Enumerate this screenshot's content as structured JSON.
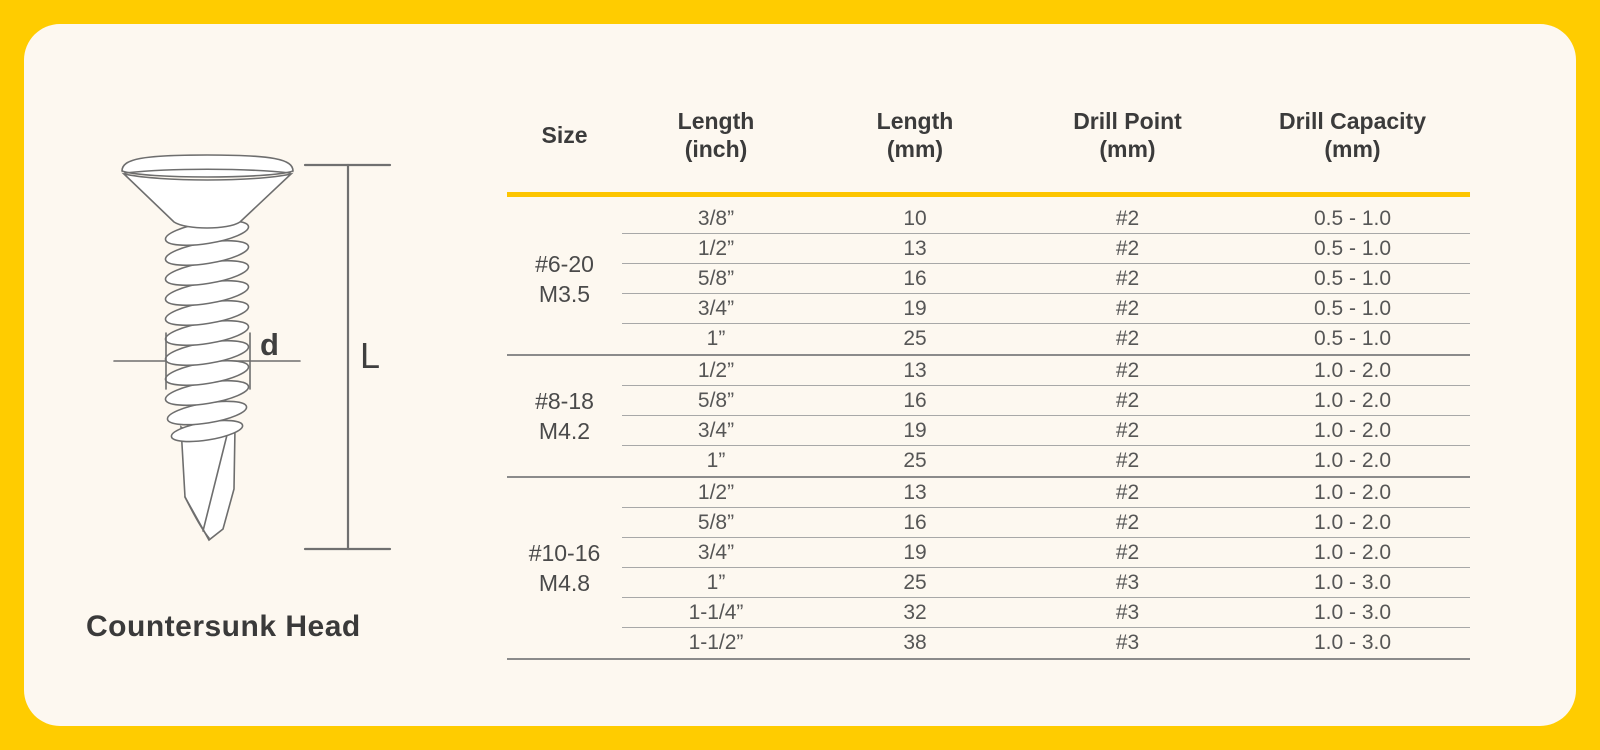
{
  "colors": {
    "frame_yellow": "#FFCC00",
    "card_background": "#FDF8F0",
    "header_rule_yellow": "#FDC500",
    "line_gray": "#a8a8a8",
    "text_dark": "#3b3b3b"
  },
  "diagram": {
    "caption": "Countersunk Head",
    "diameter_label": "d",
    "length_label": "L"
  },
  "table": {
    "columns": [
      {
        "label": "Size",
        "unit": ""
      },
      {
        "label": "Length",
        "unit": "(inch)"
      },
      {
        "label": "Length",
        "unit": "(mm)"
      },
      {
        "label": "Drill Point",
        "unit": "(mm)"
      },
      {
        "label": "Drill Capacity",
        "unit": "(mm)"
      }
    ],
    "groups": [
      {
        "size": [
          "#6-20",
          "M3.5"
        ],
        "rows": [
          [
            "3/8”",
            "10",
            "#2",
            "0.5 - 1.0"
          ],
          [
            "1/2”",
            "13",
            "#2",
            "0.5 - 1.0"
          ],
          [
            "5/8”",
            "16",
            "#2",
            "0.5 - 1.0"
          ],
          [
            "3/4”",
            "19",
            "#2",
            "0.5 - 1.0"
          ],
          [
            "1”",
            "25",
            "#2",
            "0.5 - 1.0"
          ]
        ]
      },
      {
        "size": [
          "#8-18",
          "M4.2"
        ],
        "rows": [
          [
            "1/2”",
            "13",
            "#2",
            "1.0 - 2.0"
          ],
          [
            "5/8”",
            "16",
            "#2",
            "1.0 - 2.0"
          ],
          [
            "3/4”",
            "19",
            "#2",
            "1.0 - 2.0"
          ],
          [
            "1”",
            "25",
            "#2",
            "1.0 - 2.0"
          ]
        ]
      },
      {
        "size": [
          "#10-16",
          "M4.8"
        ],
        "rows": [
          [
            "1/2”",
            "13",
            "#2",
            "1.0 - 2.0"
          ],
          [
            "5/8”",
            "16",
            "#2",
            "1.0 - 2.0"
          ],
          [
            "3/4”",
            "19",
            "#2",
            "1.0 - 2.0"
          ],
          [
            "1”",
            "25",
            "#3",
            "1.0 - 3.0"
          ],
          [
            "1-1/4”",
            "32",
            "#3",
            "1.0 - 3.0"
          ],
          [
            "1-1/2”",
            "38",
            "#3",
            "1.0 - 3.0"
          ]
        ]
      }
    ]
  }
}
